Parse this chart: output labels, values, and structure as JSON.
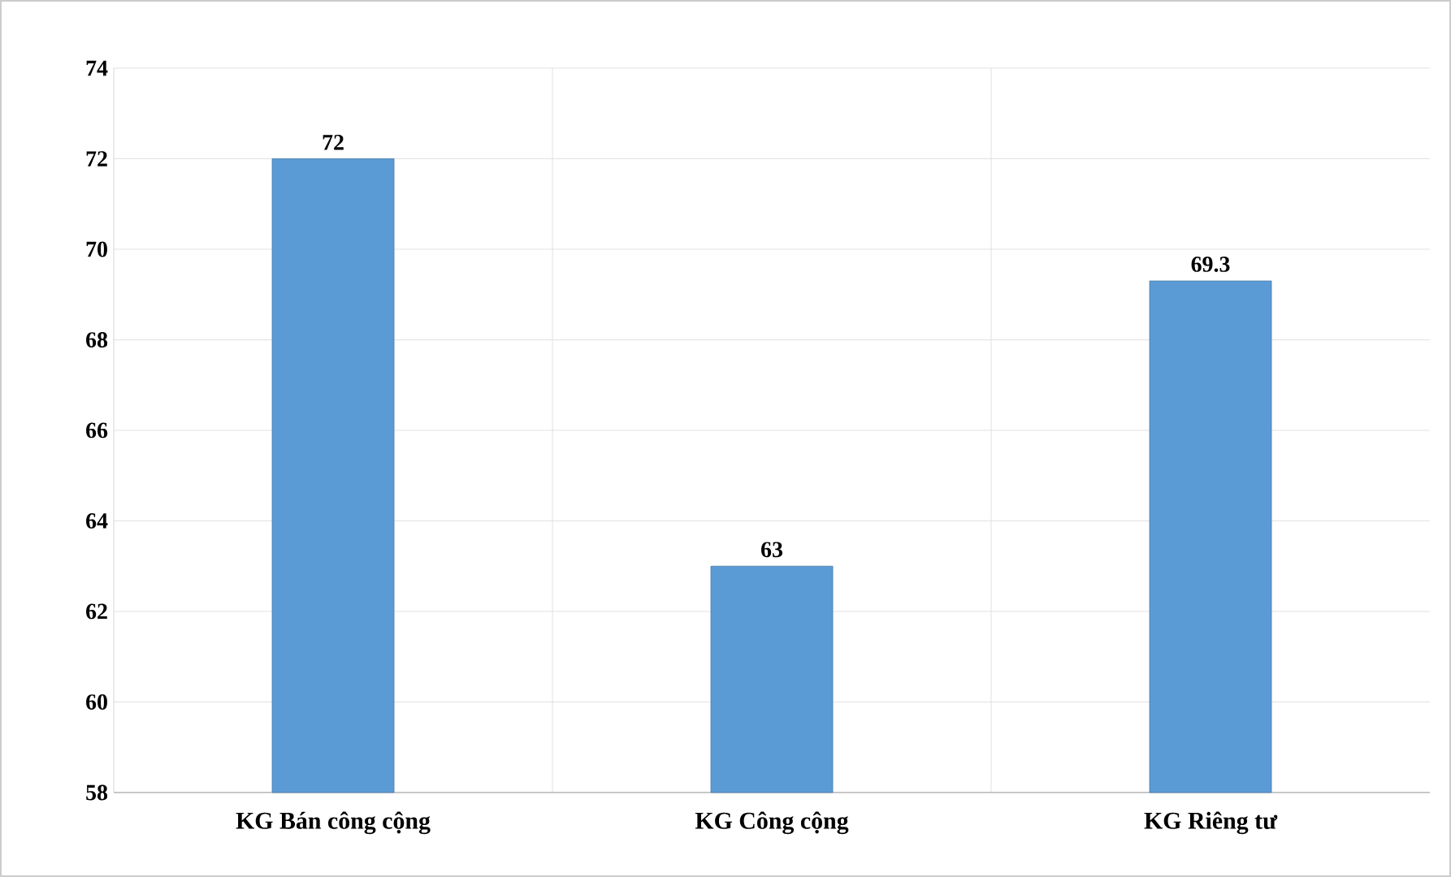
{
  "chart_data": {
    "type": "bar",
    "categories": [
      "KG Bán công cộng",
      "KG Công cộng",
      "KG Riêng tư"
    ],
    "values": [
      72,
      63,
      69.3
    ],
    "color": "#5b9bd5",
    "ylim": [
      58,
      74
    ],
    "yticks": [
      58,
      60,
      62,
      64,
      66,
      68,
      70,
      72,
      74
    ],
    "grid": true,
    "data_labels": true
  }
}
